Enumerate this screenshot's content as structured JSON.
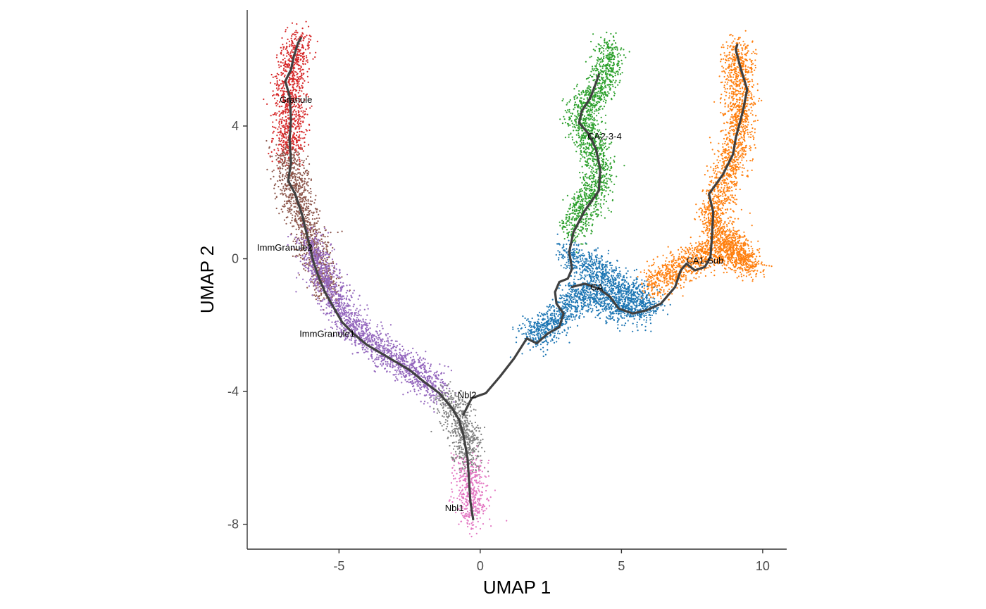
{
  "chart_data": {
    "type": "scatter",
    "title": "",
    "xlabel": "UMAP 1",
    "ylabel": "UMAP 2",
    "xlim": [
      -8.25,
      10.85
    ],
    "ylim": [
      -8.75,
      7.5
    ],
    "x_ticks": [
      -5,
      0,
      5,
      10
    ],
    "y_ticks": [
      -8,
      -4,
      0,
      4
    ],
    "x_tick_labels": [
      "-5",
      "0",
      "5",
      "10"
    ],
    "y_tick_labels": [
      "-8",
      "-4",
      "0",
      "4"
    ],
    "grid": false,
    "legend": "none",
    "trajectory_color": "#404040",
    "clusters": [
      {
        "label": "Granule",
        "color": "#d62728",
        "label_pos": [
          -7.1,
          4.7
        ],
        "spine": [
          [
            -6.35,
            6.7
          ],
          [
            -6.7,
            5.8
          ],
          [
            -6.75,
            4.8
          ],
          [
            -6.7,
            3.8
          ],
          [
            -6.85,
            3.2
          ]
        ]
      },
      {
        "label": "ImmGranule2",
        "color": "#8c564b",
        "label_pos": [
          -7.9,
          0.25
        ],
        "spine": [
          [
            -6.85,
            3.2
          ],
          [
            -6.6,
            2.2
          ],
          [
            -6.3,
            1.3
          ],
          [
            -5.9,
            0.4
          ],
          [
            -5.6,
            -0.5
          ],
          [
            -5.5,
            -1.0
          ]
        ]
      },
      {
        "label": "ImmGranule1",
        "color": "#9467bd",
        "label_pos": [
          -6.4,
          -2.35
        ],
        "spine": [
          [
            -6.1,
            0.6
          ],
          [
            -5.6,
            -0.4
          ],
          [
            -5.0,
            -1.5
          ],
          [
            -4.2,
            -2.3
          ],
          [
            -3.2,
            -2.9
          ],
          [
            -2.2,
            -3.5
          ],
          [
            -1.4,
            -4.0
          ]
        ]
      },
      {
        "label": "Nbl2",
        "color": "#7f7f7f",
        "label_pos": [
          -0.8,
          -4.2
        ],
        "spine": [
          [
            -1.2,
            -4.1
          ],
          [
            -0.9,
            -4.6
          ],
          [
            -0.6,
            -5.1
          ],
          [
            -0.45,
            -5.6
          ],
          [
            -0.35,
            -6.2
          ]
        ]
      },
      {
        "label": "Nbl1",
        "color": "#e377c2",
        "label_pos": [
          -1.25,
          -7.6
        ],
        "spine": [
          [
            -0.4,
            -6.2
          ],
          [
            -0.35,
            -6.8
          ],
          [
            -0.3,
            -7.4
          ],
          [
            -0.25,
            -7.85
          ]
        ]
      },
      {
        "label": "CA",
        "color": "#1f77b4",
        "label_pos": [
          3.9,
          -0.95
        ],
        "spine": [
          [
            1.7,
            -2.3
          ],
          [
            2.5,
            -2.1
          ],
          [
            3.0,
            -1.6
          ],
          [
            3.5,
            -1.0
          ],
          [
            4.3,
            -1.2
          ],
          [
            5.3,
            -1.6
          ],
          [
            6.0,
            -1.4
          ],
          [
            3.1,
            0.2
          ]
        ]
      },
      {
        "label": "CA2-3-4",
        "color": "#2ca02c",
        "label_pos": [
          3.8,
          3.6
        ],
        "spine": [
          [
            3.3,
            0.8
          ],
          [
            3.7,
            1.6
          ],
          [
            4.2,
            2.3
          ],
          [
            4.1,
            3.2
          ],
          [
            3.8,
            3.8
          ],
          [
            3.5,
            4.2
          ],
          [
            4.0,
            4.9
          ],
          [
            4.6,
            5.6
          ],
          [
            4.5,
            6.4
          ]
        ]
      },
      {
        "label": "CA1-Sub",
        "color": "#ff7f0e",
        "label_pos": [
          7.3,
          -0.15
        ],
        "spine": [
          [
            6.0,
            -0.8
          ],
          [
            7.0,
            -0.3
          ],
          [
            7.8,
            0.1
          ],
          [
            8.6,
            0.3
          ],
          [
            9.6,
            -0.2
          ],
          [
            8.1,
            1.2
          ],
          [
            8.6,
            2.2
          ],
          [
            9.2,
            3.9
          ],
          [
            9.1,
            6.4
          ]
        ]
      }
    ],
    "trajectory": [
      [
        [
          -0.25,
          -7.85
        ],
        [
          -0.35,
          -7.3
        ],
        [
          -0.4,
          -6.6
        ],
        [
          -0.45,
          -6.0
        ],
        [
          -0.6,
          -5.3
        ],
        [
          -0.75,
          -4.85
        ],
        [
          -1.0,
          -4.5
        ],
        [
          -1.45,
          -4.05
        ],
        [
          -2.0,
          -3.7
        ],
        [
          -2.5,
          -3.35
        ],
        [
          -3.0,
          -3.1
        ],
        [
          -3.5,
          -2.85
        ],
        [
          -4.0,
          -2.6
        ],
        [
          -4.5,
          -2.25
        ],
        [
          -4.9,
          -1.9
        ],
        [
          -5.2,
          -1.45
        ],
        [
          -5.5,
          -1.0
        ],
        [
          -5.7,
          -0.6
        ],
        [
          -5.9,
          -0.1
        ],
        [
          -6.1,
          0.6
        ],
        [
          -6.3,
          1.3
        ],
        [
          -6.55,
          1.95
        ],
        [
          -6.8,
          2.35
        ],
        [
          -6.7,
          2.9
        ],
        [
          -6.75,
          3.6
        ],
        [
          -6.7,
          4.2
        ],
        [
          -6.75,
          4.9
        ],
        [
          -6.9,
          5.35
        ],
        [
          -6.7,
          5.7
        ],
        [
          -6.6,
          6.1
        ],
        [
          -6.45,
          6.5
        ],
        [
          -6.35,
          6.65
        ]
      ],
      [
        [
          -0.6,
          -4.7
        ],
        [
          -0.3,
          -4.2
        ],
        [
          0.2,
          -4.05
        ],
        [
          0.7,
          -3.55
        ],
        [
          1.2,
          -3.0
        ],
        [
          1.65,
          -2.4
        ],
        [
          2.0,
          -2.55
        ],
        [
          2.4,
          -2.25
        ],
        [
          2.8,
          -2.05
        ],
        [
          2.95,
          -1.65
        ],
        [
          2.7,
          -1.35
        ],
        [
          2.65,
          -1.0
        ],
        [
          2.8,
          -0.7
        ],
        [
          3.1,
          -0.6
        ],
        [
          3.25,
          -0.3
        ],
        [
          3.15,
          0.2
        ],
        [
          3.3,
          0.8
        ],
        [
          3.7,
          1.45
        ],
        [
          4.2,
          2.05
        ],
        [
          4.25,
          2.7
        ],
        [
          4.1,
          3.3
        ],
        [
          3.85,
          3.75
        ],
        [
          3.5,
          4.1
        ],
        [
          3.6,
          4.45
        ],
        [
          3.9,
          4.85
        ],
        [
          4.1,
          5.3
        ],
        [
          4.2,
          5.55
        ]
      ],
      [
        [
          3.25,
          -0.85
        ],
        [
          3.7,
          -0.75
        ],
        [
          4.2,
          -0.9
        ],
        [
          4.6,
          -1.15
        ],
        [
          4.9,
          -1.5
        ],
        [
          5.4,
          -1.65
        ],
        [
          5.9,
          -1.55
        ],
        [
          6.4,
          -1.35
        ],
        [
          6.9,
          -0.85
        ],
        [
          7.1,
          -0.35
        ],
        [
          7.3,
          -0.15
        ],
        [
          7.6,
          -0.35
        ],
        [
          7.95,
          -0.25
        ],
        [
          8.15,
          0.05
        ],
        [
          8.2,
          0.6
        ],
        [
          8.25,
          1.4
        ],
        [
          8.1,
          1.95
        ],
        [
          8.6,
          2.55
        ],
        [
          8.95,
          3.15
        ],
        [
          9.05,
          3.65
        ],
        [
          9.3,
          4.45
        ],
        [
          9.45,
          5.1
        ],
        [
          9.2,
          5.8
        ],
        [
          9.05,
          6.3
        ],
        [
          9.1,
          6.45
        ]
      ]
    ]
  }
}
